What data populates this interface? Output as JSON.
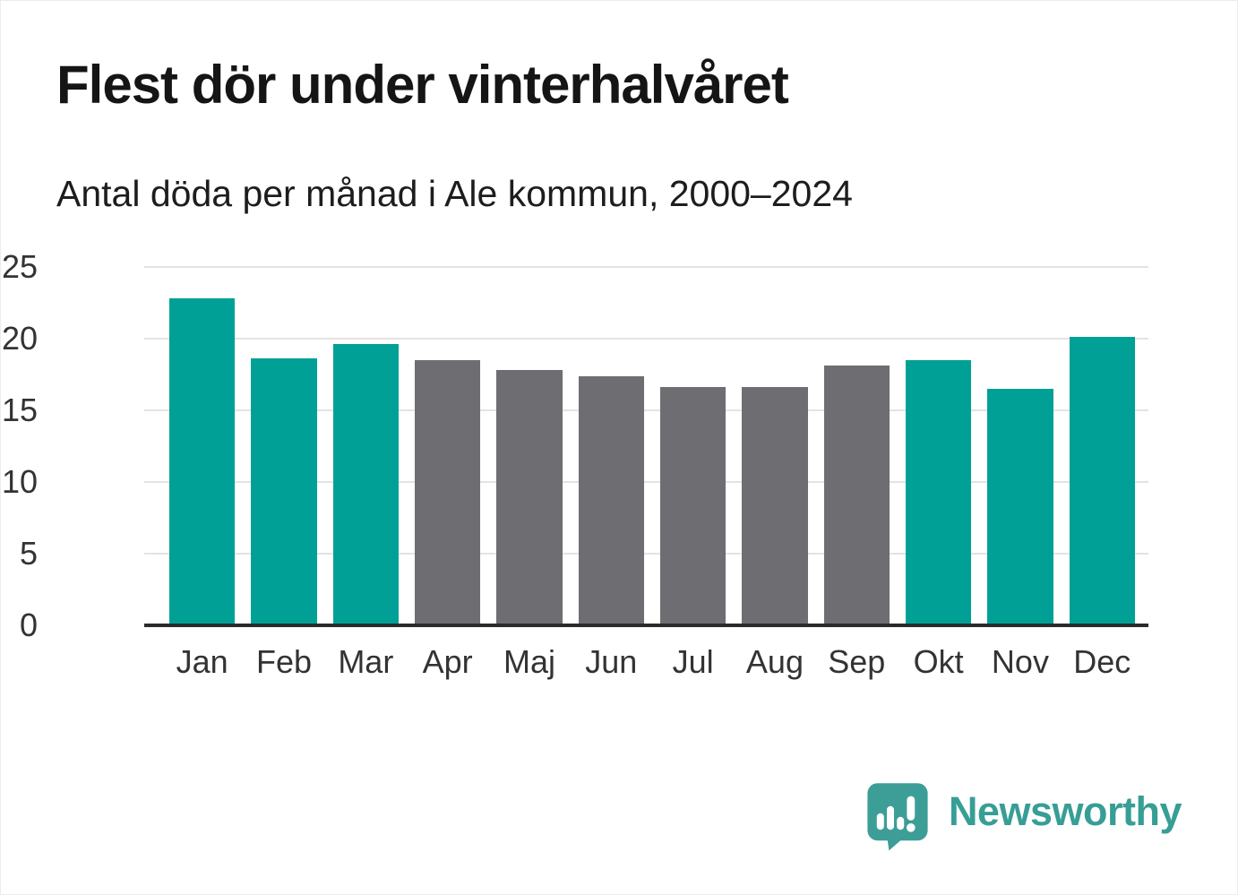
{
  "header": {
    "title": "Flest dör under vinterhalvåret",
    "subtitle": "Antal döda per månad i Ale kommun, 2000–2024"
  },
  "chart_data": {
    "type": "bar",
    "categories": [
      "Jan",
      "Feb",
      "Mar",
      "Apr",
      "Maj",
      "Jun",
      "Jul",
      "Aug",
      "Sep",
      "Okt",
      "Nov",
      "Dec"
    ],
    "values": [
      22.8,
      18.6,
      19.6,
      18.5,
      17.8,
      17.4,
      16.6,
      16.6,
      18.1,
      18.5,
      16.5,
      20.1
    ],
    "bar_color_keys": [
      "winter",
      "winter",
      "winter",
      "summer",
      "summer",
      "summer",
      "summer",
      "summer",
      "summer",
      "winter",
      "winter",
      "winter"
    ],
    "palette": {
      "winter": "#00a096",
      "summer": "#6d6d72"
    },
    "title": "Flest dör under vinterhalvåret",
    "subtitle": "Antal döda per månad i Ale kommun, 2000–2024",
    "xlabel": "",
    "ylabel": "",
    "yticks": [
      0,
      5,
      10,
      15,
      20,
      25
    ],
    "ylim": [
      0,
      25
    ],
    "grid": "horizontal",
    "gridline_color": "#e3e3e3",
    "axis_line_color": "#2b2b2b",
    "tick_label_color": "#333333"
  },
  "footer": {
    "brand_name": "Newsworthy",
    "brand_color": "#379e96",
    "logo_bubble_color": "#3d9e97",
    "logo_icon": "bar-chart-exclamation-speech-bubble"
  }
}
